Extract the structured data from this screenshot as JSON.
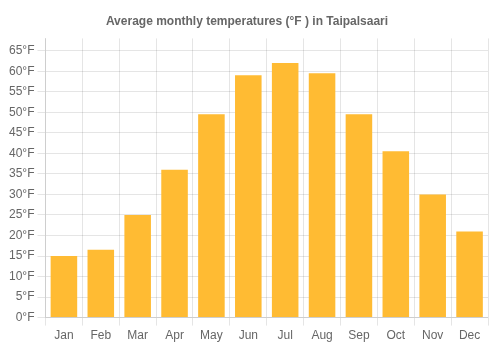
{
  "chart_data": {
    "type": "bar",
    "title": "Average monthly temperatures (°F ) in Taipalsaari",
    "categories": [
      "Jan",
      "Feb",
      "Mar",
      "Apr",
      "May",
      "Jun",
      "Jul",
      "Aug",
      "Sep",
      "Oct",
      "Nov",
      "Dec"
    ],
    "values": [
      15,
      16.5,
      25,
      36,
      49.5,
      59,
      62,
      59.5,
      49.5,
      40.5,
      30,
      21
    ],
    "color": "#FFBB33",
    "ylim": [
      0,
      68
    ],
    "yticks": [
      {
        "value": 0,
        "label": "0°F"
      },
      {
        "value": 5,
        "label": "5°F"
      },
      {
        "value": 10,
        "label": "10°F"
      },
      {
        "value": 15,
        "label": "15°F"
      },
      {
        "value": 20,
        "label": "20°F"
      },
      {
        "value": 25,
        "label": "25°F"
      },
      {
        "value": 30,
        "label": "30°F"
      },
      {
        "value": 35,
        "label": "35°F"
      },
      {
        "value": 40,
        "label": "40°F"
      },
      {
        "value": 45,
        "label": "45°F"
      },
      {
        "value": 50,
        "label": "50°F"
      },
      {
        "value": 55,
        "label": "55°F"
      },
      {
        "value": 60,
        "label": "60°F"
      },
      {
        "value": 65,
        "label": "65°F"
      }
    ],
    "grid": true
  }
}
